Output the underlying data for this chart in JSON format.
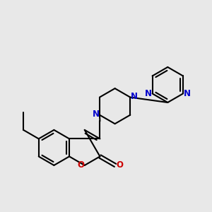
{
  "background_color": "#e8e8e8",
  "bond_color": "#000000",
  "nitrogen_color": "#0000cc",
  "oxygen_color": "#cc0000",
  "bond_width": 1.5,
  "figsize": [
    3.0,
    3.0
  ],
  "dpi": 100,
  "xlim": [
    0,
    10
  ],
  "ylim": [
    0,
    10
  ]
}
